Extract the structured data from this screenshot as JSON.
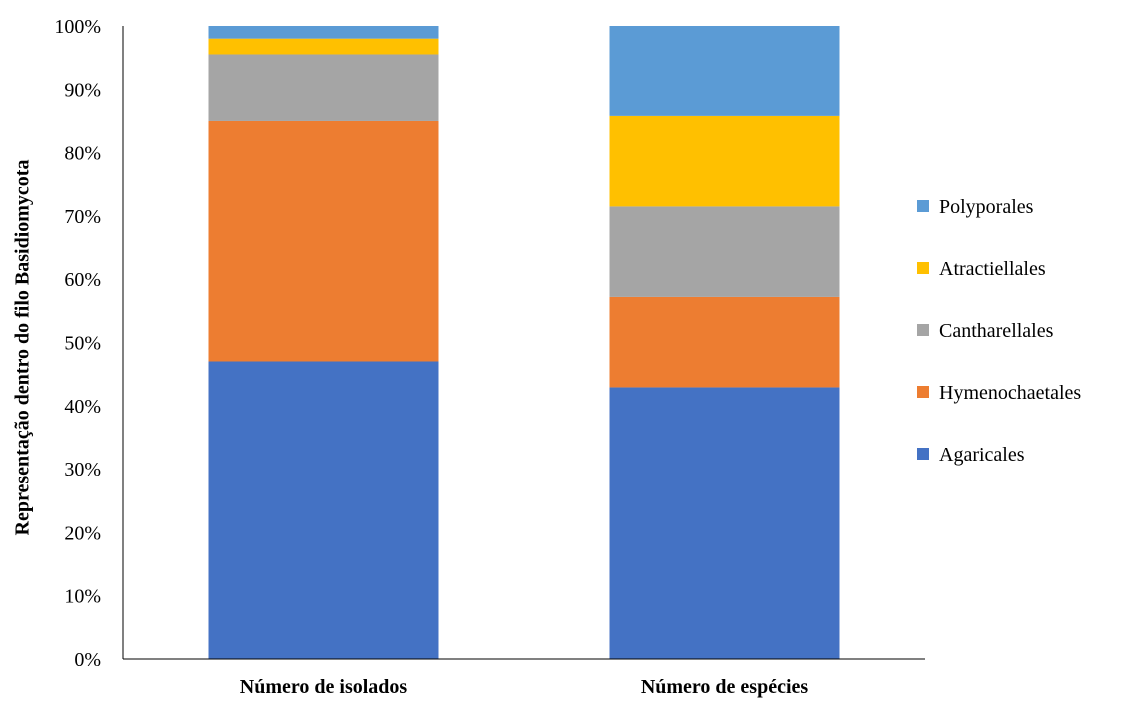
{
  "chart_data": {
    "type": "bar",
    "stacked": true,
    "normalized_percent": true,
    "title": "",
    "xlabel": "",
    "ylabel": "Representação dentro do filo Basidiomycota",
    "ylim": [
      0,
      100
    ],
    "yticks": [
      "0%",
      "10%",
      "20%",
      "30%",
      "40%",
      "50%",
      "60%",
      "70%",
      "80%",
      "90%",
      "100%"
    ],
    "categories": [
      "Número de isolados",
      "Número de espécies"
    ],
    "series": [
      {
        "name": "Agaricales",
        "color": "#4472C4",
        "values": [
          47,
          42.9
        ]
      },
      {
        "name": "Hymenochaetales",
        "color": "#ED7D31",
        "values": [
          38,
          14.3
        ]
      },
      {
        "name": "Cantharellales",
        "color": "#A5A5A5",
        "values": [
          10.5,
          14.3
        ]
      },
      {
        "name": "Atractiellales",
        "color": "#FFC000",
        "values": [
          2.5,
          14.3
        ]
      },
      {
        "name": "Polyporales",
        "color": "#5B9BD5",
        "values": [
          2,
          14.2
        ]
      }
    ],
    "legend_position": "right",
    "grid": false
  }
}
